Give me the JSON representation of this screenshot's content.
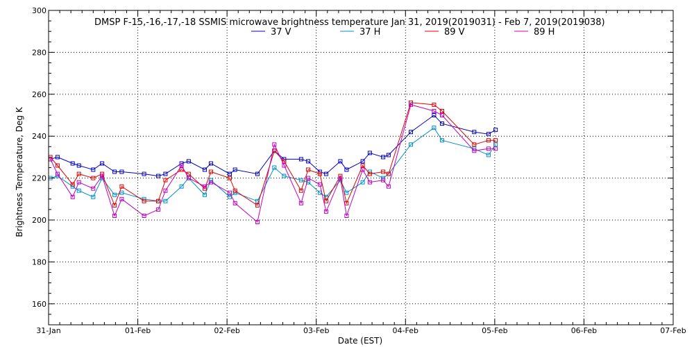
{
  "chart_data": {
    "type": "line",
    "title": "DMSP F-15,-16,-17,-18 SSMIS microwave brightness temperature Jan 31, 2019(2019031) - Feb  7, 2019(2019038)",
    "xlabel": "Date (EST)",
    "ylabel": "Brightness Temperature, Deg K",
    "ylim": [
      150,
      300
    ],
    "yticks": [
      160,
      180,
      200,
      220,
      240,
      260,
      280,
      300
    ],
    "xlim": [
      0,
      7
    ],
    "xtick_labels": [
      "31-Jan",
      "01-Feb",
      "02-Feb",
      "03-Feb",
      "04-Feb",
      "05-Feb",
      "06-Feb",
      "07-Feb"
    ],
    "grid": true,
    "legend_position": "top-center",
    "marker": "square",
    "series": [
      {
        "name": "37 V",
        "color": "#0000c0",
        "x": [
          0.02,
          0.1,
          0.27,
          0.34,
          0.5,
          0.6,
          0.74,
          0.82,
          1.07,
          1.23,
          1.31,
          1.49,
          1.57,
          1.75,
          1.82,
          2.03,
          2.09,
          2.34,
          2.53,
          2.64,
          2.83,
          2.91,
          3.04,
          3.11,
          3.27,
          3.34,
          3.52,
          3.6,
          3.75,
          3.81,
          4.06,
          4.32,
          4.41,
          4.77,
          4.93,
          5.01
        ],
        "y": [
          229,
          230,
          227,
          226,
          224,
          227,
          223,
          223,
          222,
          221,
          222,
          227,
          228,
          224,
          227,
          222,
          224,
          222,
          233,
          229,
          229,
          228,
          223,
          222,
          228,
          224,
          228,
          232,
          230,
          231,
          242,
          250,
          246,
          242,
          241,
          243
        ]
      },
      {
        "name": "37 H",
        "color": "#0090c8",
        "x": [
          0.02,
          0.1,
          0.27,
          0.34,
          0.5,
          0.6,
          0.74,
          0.82,
          1.07,
          1.23,
          1.31,
          1.49,
          1.57,
          1.75,
          1.82,
          2.03,
          2.09,
          2.34,
          2.53,
          2.64,
          2.83,
          2.91,
          3.04,
          3.11,
          3.27,
          3.34,
          3.52,
          3.6,
          3.75,
          3.81,
          4.06,
          4.32,
          4.41,
          4.77,
          4.93,
          5.01
        ],
        "y": [
          220,
          221,
          216,
          214,
          211,
          220,
          212,
          213,
          210,
          209,
          209,
          216,
          220,
          212,
          219,
          211,
          213,
          209,
          225,
          221,
          219,
          218,
          213,
          211,
          219,
          213,
          218,
          223,
          220,
          222,
          236,
          244,
          238,
          234,
          231,
          236
        ]
      },
      {
        "name": "89 V",
        "color": "#e00000",
        "x": [
          0.02,
          0.1,
          0.27,
          0.34,
          0.5,
          0.6,
          0.74,
          0.82,
          1.07,
          1.23,
          1.31,
          1.49,
          1.57,
          1.75,
          1.82,
          2.03,
          2.09,
          2.34,
          2.53,
          2.64,
          2.83,
          2.91,
          3.04,
          3.11,
          3.27,
          3.34,
          3.52,
          3.6,
          3.75,
          3.81,
          4.06,
          4.32,
          4.41,
          4.77,
          4.93,
          5.01
        ],
        "y": [
          230,
          226,
          217,
          222,
          220,
          222,
          207,
          216,
          209,
          209,
          219,
          224,
          222,
          215,
          223,
          220,
          214,
          207,
          233,
          228,
          214,
          224,
          222,
          209,
          221,
          208,
          226,
          222,
          223,
          222,
          256,
          255,
          252,
          236,
          238,
          238
        ]
      },
      {
        "name": "89 H",
        "color": "#c000c0",
        "x": [
          0.02,
          0.1,
          0.27,
          0.34,
          0.5,
          0.6,
          0.74,
          0.82,
          1.07,
          1.23,
          1.31,
          1.49,
          1.57,
          1.75,
          1.82,
          2.03,
          2.09,
          2.34,
          2.53,
          2.64,
          2.83,
          2.91,
          3.04,
          3.11,
          3.27,
          3.34,
          3.52,
          3.6,
          3.75,
          3.81,
          4.06,
          4.32,
          4.41,
          4.77,
          4.93,
          5.01
        ],
        "y": [
          229,
          222,
          211,
          218,
          215,
          221,
          202,
          210,
          202,
          205,
          214,
          226,
          220,
          216,
          218,
          213,
          208,
          199,
          236,
          226,
          208,
          220,
          217,
          204,
          220,
          202,
          224,
          218,
          219,
          216,
          255,
          252,
          250,
          233,
          234,
          234
        ]
      }
    ]
  }
}
